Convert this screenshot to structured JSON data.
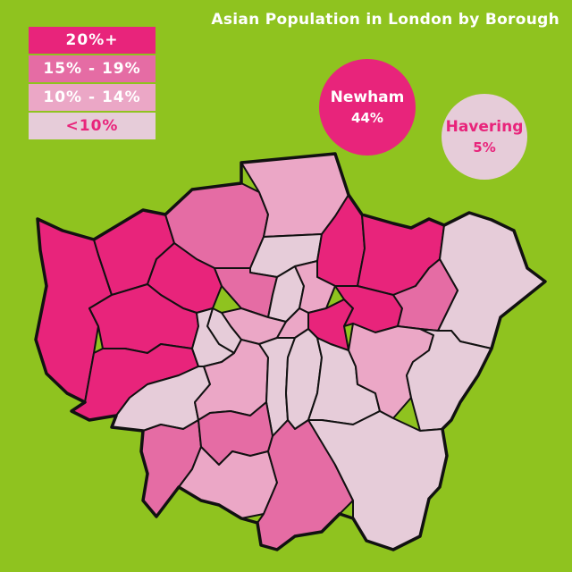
{
  "title": "Asian Population in London by Borough",
  "colors": {
    "background": "#8fc31f",
    "tier_20plus": "#e8247b",
    "tier_15_19": "#e56ca4",
    "tier_10_14": "#eba7c6",
    "tier_lt10": "#e6ccd9",
    "outline": "#111111"
  },
  "legend": [
    {
      "label": "20%+",
      "color": "#e8247b",
      "text_color": "#ffffff"
    },
    {
      "label": "15% - 19%",
      "color": "#e56ca4",
      "text_color": "#ffffff"
    },
    {
      "label": "10% - 14%",
      "color": "#eba7c6",
      "text_color": "#ffffff"
    },
    {
      "label": "<10%",
      "color": "#e6ccd9",
      "text_color": "#e8247b"
    }
  ],
  "callouts": {
    "newham": {
      "name": "Newham",
      "value": "44%",
      "bg": "#e8247b",
      "fg": "#ffffff"
    },
    "havering": {
      "name": "Havering",
      "value": "5%",
      "bg": "#e6ccd9",
      "fg": "#e8247b"
    }
  },
  "map": {
    "regions": [
      {
        "id": "hillingdon",
        "tier": "20plus"
      },
      {
        "id": "harrow",
        "tier": "20plus"
      },
      {
        "id": "barnet",
        "tier": "15_19"
      },
      {
        "id": "enfield",
        "tier": "10_14"
      },
      {
        "id": "haringey",
        "tier": "lt10"
      },
      {
        "id": "waltham-forest",
        "tier": "20plus"
      },
      {
        "id": "redbridge",
        "tier": "20plus"
      },
      {
        "id": "havering",
        "tier": "lt10"
      },
      {
        "id": "brent",
        "tier": "20plus"
      },
      {
        "id": "ealing",
        "tier": "20plus"
      },
      {
        "id": "hounslow",
        "tier": "20plus"
      },
      {
        "id": "camden",
        "tier": "15_19"
      },
      {
        "id": "islington",
        "tier": "lt10"
      },
      {
        "id": "hackney",
        "tier": "10_14"
      },
      {
        "id": "tower-hamlets",
        "tier": "20plus"
      },
      {
        "id": "newham",
        "tier": "20plus"
      },
      {
        "id": "barking-dagenham",
        "tier": "15_19"
      },
      {
        "id": "westminster",
        "tier": "10_14"
      },
      {
        "id": "city",
        "tier": "10_14"
      },
      {
        "id": "kensington-chelsea",
        "tier": "lt10"
      },
      {
        "id": "hammersmith-fulham",
        "tier": "lt10"
      },
      {
        "id": "richmond",
        "tier": "lt10"
      },
      {
        "id": "wandsworth",
        "tier": "10_14"
      },
      {
        "id": "lambeth",
        "tier": "lt10"
      },
      {
        "id": "southwark",
        "tier": "lt10"
      },
      {
        "id": "lewisham",
        "tier": "lt10"
      },
      {
        "id": "greenwich",
        "tier": "10_14"
      },
      {
        "id": "bexley",
        "tier": "lt10"
      },
      {
        "id": "kingston",
        "tier": "15_19"
      },
      {
        "id": "merton",
        "tier": "15_19"
      },
      {
        "id": "sutton",
        "tier": "10_14"
      },
      {
        "id": "croydon",
        "tier": "15_19"
      },
      {
        "id": "bromley",
        "tier": "lt10"
      }
    ]
  }
}
